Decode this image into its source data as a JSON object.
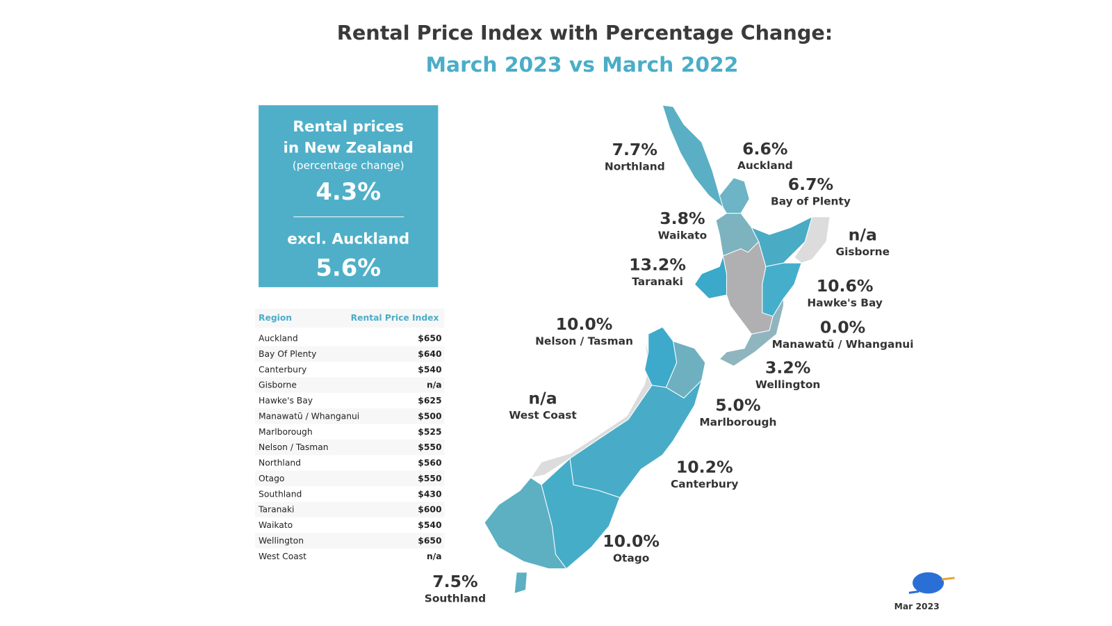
{
  "header": {
    "title": "Rental Price Index with Percentage Change:",
    "subtitle": "March 2023 vs March 2022"
  },
  "summary": {
    "line1": "Rental prices",
    "line2": "in New Zealand",
    "note": "(percentage change)",
    "value": "4.3%",
    "excl_label": "excl. Auckland",
    "excl_value": "5.6%"
  },
  "table": {
    "columns": [
      "Region",
      "Rental Price Index"
    ],
    "rows": [
      [
        "Auckland",
        "$650"
      ],
      [
        "Bay Of Plenty",
        "$640"
      ],
      [
        "Canterbury",
        "$540"
      ],
      [
        "Gisborne",
        "n/a"
      ],
      [
        "Hawke's Bay",
        "$625"
      ],
      [
        "Manawatū / Whanganui",
        "$500"
      ],
      [
        "Marlborough",
        "$525"
      ],
      [
        "Nelson / Tasman",
        "$550"
      ],
      [
        "Northland",
        "$560"
      ],
      [
        "Otago",
        "$550"
      ],
      [
        "Southland",
        "$430"
      ],
      [
        "Taranaki",
        "$600"
      ],
      [
        "Waikato",
        "$540"
      ],
      [
        "Wellington",
        "$650"
      ],
      [
        "West Coast",
        "n/a"
      ]
    ]
  },
  "map": {
    "labels": [
      {
        "change": "7.7%",
        "region": "Northland"
      },
      {
        "change": "6.6%",
        "region": "Auckland"
      },
      {
        "change": "6.7%",
        "region": "Bay of Plenty"
      },
      {
        "change": "3.8%",
        "region": "Waikato"
      },
      {
        "change": "n/a",
        "region": "Gisborne"
      },
      {
        "change": "13.2%",
        "region": "Taranaki"
      },
      {
        "change": "10.6%",
        "region": "Hawke's Bay"
      },
      {
        "change": "0.0%",
        "region": "Manawatū / Whanganui"
      },
      {
        "change": "10.0%",
        "region": "Nelson / Tasman"
      },
      {
        "change": "3.2%",
        "region": "Wellington"
      },
      {
        "change": "n/a",
        "region": "West Coast"
      },
      {
        "change": "5.0%",
        "region": "Marlborough"
      },
      {
        "change": "10.2%",
        "region": "Canterbury"
      },
      {
        "change": "10.0%",
        "region": "Otago"
      },
      {
        "change": "7.5%",
        "region": "Southland"
      }
    ]
  },
  "footer": {
    "date": "Mar 2023"
  }
}
